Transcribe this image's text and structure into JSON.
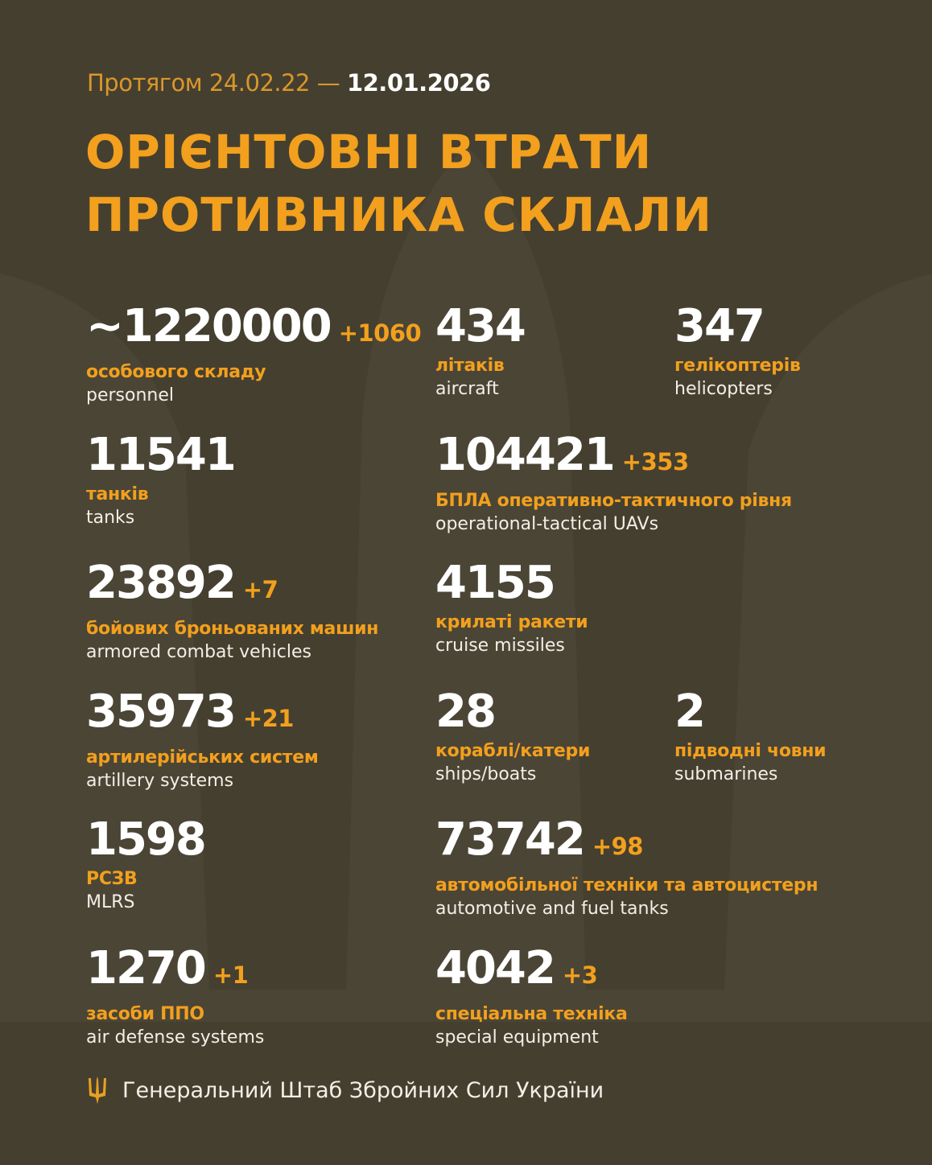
{
  "header": {
    "period_prefix": "Протягом 24.02.22 —",
    "period_end": "12.01.2026",
    "title_line1": "ОРІЄНТОВНІ ВТРАТИ",
    "title_line2": "ПРОТИВНИКА СКЛАЛИ"
  },
  "colors": {
    "background": "#453f30",
    "accent": "#f2a01d",
    "text": "#ffffff"
  },
  "rows": [
    [
      {
        "value": "~1220000",
        "delta": "+1060",
        "ua": "особового складу",
        "en": "personnel"
      },
      {
        "value": "434",
        "delta": "",
        "ua": "літаків",
        "en": "aircraft"
      },
      {
        "value": "347",
        "delta": "",
        "ua": "гелікоптерів",
        "en": "helicopters"
      }
    ],
    [
      {
        "value": "11541",
        "delta": "",
        "ua": "танків",
        "en": "tanks"
      },
      {
        "value": "104421",
        "delta": "+353",
        "ua": "БПЛА оперативно-тактичного рівня",
        "en": "operational-tactical UAVs"
      },
      null
    ],
    [
      {
        "value": "23892",
        "delta": "+7",
        "ua": "бойових броньованих машин",
        "en": "armored combat vehicles"
      },
      {
        "value": "4155",
        "delta": "",
        "ua": "крилаті ракети",
        "en": "cruise missiles"
      },
      null
    ],
    [
      {
        "value": "35973",
        "delta": "+21",
        "ua": "артилерійських систем",
        "en": "artillery systems"
      },
      {
        "value": "28",
        "delta": "",
        "ua": "кораблі/катери",
        "en": "ships/boats"
      },
      {
        "value": "2",
        "delta": "",
        "ua": "підводні човни",
        "en": "submarines"
      }
    ],
    [
      {
        "value": "1598",
        "delta": "",
        "ua": "РСЗВ",
        "en": "MLRS"
      },
      {
        "value": "73742",
        "delta": "+98",
        "ua": "автомобільної техніки та автоцистерн",
        "en": "automotive and fuel tanks"
      },
      null
    ],
    [
      {
        "value": "1270",
        "delta": "+1",
        "ua": "засоби ППО",
        "en": "air defense systems"
      },
      {
        "value": "4042",
        "delta": "+3",
        "ua": "спеціальна техніка",
        "en": "special equipment"
      },
      null
    ]
  ],
  "footer": {
    "icon": "trident-icon",
    "text": "Генеральний Штаб Збройних Сил України"
  }
}
